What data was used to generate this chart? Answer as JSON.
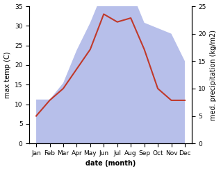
{
  "months": [
    "Jan",
    "Feb",
    "Mar",
    "Apr",
    "May",
    "Jun",
    "Jul",
    "Aug",
    "Sep",
    "Oct",
    "Nov",
    "Dec"
  ],
  "x": [
    0,
    1,
    2,
    3,
    4,
    5,
    6,
    7,
    8,
    9,
    10,
    11
  ],
  "temperature": [
    7,
    11,
    14,
    19,
    24,
    33,
    31,
    32,
    24,
    14,
    11,
    11
  ],
  "precipitation": [
    8,
    8,
    11,
    17,
    22,
    28,
    34,
    28,
    22,
    21,
    20,
    15
  ],
  "temp_color": "#c0392b",
  "precip_color_fill": "#b0b8e8",
  "ylabel_left": "max temp (C)",
  "ylabel_right": "med. precipitation (kg/m2)",
  "xlabel": "date (month)",
  "ylim_left": [
    0,
    35
  ],
  "ylim_right": [
    0,
    25
  ],
  "left_ticks": [
    0,
    5,
    10,
    15,
    20,
    25,
    30,
    35
  ],
  "right_ticks": [
    0,
    5,
    10,
    15,
    20,
    25
  ],
  "label_fontsize": 7,
  "tick_fontsize": 6.5
}
